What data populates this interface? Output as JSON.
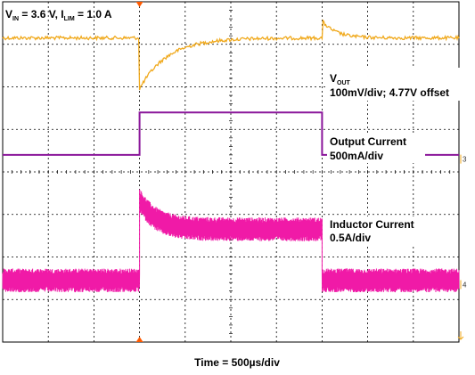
{
  "header": {
    "vin_v": "V",
    "vin_sub": "IN",
    "vin_value": " = 3.6 V, ",
    "ilim_i": "I",
    "ilim_sub": "LIM",
    "ilim_value": " = 1.0 A"
  },
  "footer": {
    "time_label": "Time = 500µs/div"
  },
  "colors": {
    "background": "#ffffff",
    "grid": "#000000",
    "vout_trace": "#f0a91c",
    "output_current_trace": "#8a169a",
    "inductor_current_trace": "#f01aa7",
    "trigger_marker": "#ff5a00"
  },
  "chart_data": {
    "type": "line",
    "title": "",
    "xlabel": "Time = 500µs/div",
    "x_divisions": 10,
    "y_divisions": 8,
    "x_unit": "div",
    "load_step": {
      "rise_div": 3.0,
      "fall_div": 7.0
    },
    "series": [
      {
        "name": "VOUT",
        "label_main": "V",
        "label_sub": "OUT",
        "label_line2": "100mV/div; 4.77V offset",
        "scale": "100mV/div",
        "offset": "4.77V",
        "baseline_div": 0.85,
        "events": [
          {
            "x_div": 3.0,
            "type": "undershoot",
            "peak_div": -1.2,
            "recovery_div": 0.6
          },
          {
            "x_div": 7.0,
            "type": "overshoot",
            "peak_div": 0.4,
            "recovery_div": 0.3
          }
        ],
        "noise_div": 0.04,
        "color": "#f0a91c"
      },
      {
        "name": "Output Current",
        "label_main": "Output Current",
        "label_line2": "500mA/div",
        "scale": "500mA/div",
        "segments": [
          {
            "x_start": 0.0,
            "x_end": 3.0,
            "level_div": 3.6
          },
          {
            "x_start": 3.0,
            "x_end": 7.0,
            "level_div": 2.6
          },
          {
            "x_start": 7.0,
            "x_end": 10.0,
            "level_div": 3.6
          }
        ],
        "color": "#8a169a"
      },
      {
        "name": "Inductor Current",
        "label_main": "Inductor Current",
        "label_line2": "0.5A/div",
        "scale": "0.5A/div",
        "segments": [
          {
            "x_start": 0.0,
            "x_end": 3.0,
            "level_div": 6.55,
            "ripple_div": 0.28
          },
          {
            "x_start": 3.0,
            "x_end": 7.0,
            "level_div": 5.35,
            "ripple_div": 0.28,
            "start_peak_div": 4.65
          },
          {
            "x_start": 7.0,
            "x_end": 10.0,
            "level_div": 6.55,
            "ripple_div": 0.28
          }
        ],
        "color": "#f01aa7"
      }
    ],
    "channel_markers": [
      {
        "text": "3",
        "row_div": 3.7
      },
      {
        "text": "4",
        "row_div": 6.65
      }
    ],
    "trigger_marker_x_div": 3.0
  }
}
